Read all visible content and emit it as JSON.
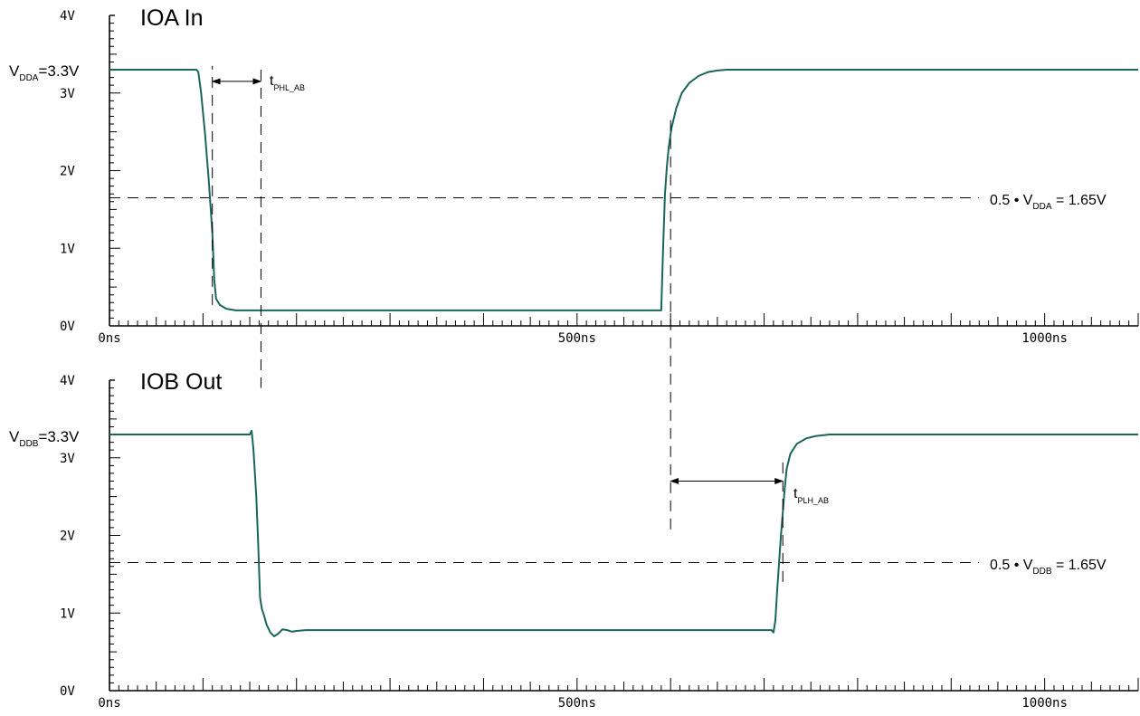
{
  "colors": {
    "trace": "#1b665b",
    "axis": "#000000",
    "guide": "#000000"
  },
  "chart_data": [
    {
      "type": "line",
      "title": "IOA  In",
      "xlabel": "",
      "ylabel": "",
      "xlim": [
        0,
        1100
      ],
      "ylim": [
        0,
        4
      ],
      "x_ticks": [
        {
          "value": 0,
          "label": "0ns"
        },
        {
          "value": 500,
          "label": "500ns"
        },
        {
          "value": 1000,
          "label": "1000ns"
        }
      ],
      "y_ticks": [
        {
          "value": 0,
          "label": "0V"
        },
        {
          "value": 1,
          "label": "1V"
        },
        {
          "value": 2,
          "label": "2V"
        },
        {
          "value": 3,
          "label": "3V"
        },
        {
          "value": 4,
          "label": "4V"
        }
      ],
      "supply_label": {
        "main": "V",
        "sub": "DDA",
        "rest": "=3.3V",
        "value": 3.3
      },
      "threshold": {
        "value": 1.65,
        "pre": "0.5 • V",
        "sub": "DDA",
        "post": " = 1.65V"
      },
      "series": [
        {
          "x": [
            0,
            93,
            95,
            98,
            102,
            106,
            110,
            112,
            114,
            118,
            125,
            135,
            150,
            200,
            300,
            400,
            500,
            590,
            592,
            594,
            596,
            598,
            601,
            606,
            612,
            620,
            630,
            640,
            650,
            660,
            1100
          ],
          "y": [
            3.3,
            3.3,
            3.27,
            3.0,
            2.5,
            1.9,
            1.2,
            0.6,
            0.35,
            0.27,
            0.22,
            0.2,
            0.2,
            0.2,
            0.2,
            0.2,
            0.2,
            0.2,
            1.0,
            1.7,
            2.05,
            2.3,
            2.55,
            2.8,
            3.0,
            3.13,
            3.22,
            3.27,
            3.29,
            3.3,
            3.3
          ]
        }
      ],
      "markers": [
        {
          "kind": "vline",
          "x": 110,
          "y_from": 0.27,
          "y_to": 3.35
        },
        {
          "kind": "arrow",
          "from": 110,
          "to": 162,
          "y": 3.15,
          "pre": "t",
          "sub": "PHL_AB"
        }
      ]
    },
    {
      "type": "line",
      "title": "IOB  Out",
      "xlabel": "",
      "ylabel": "",
      "xlim": [
        0,
        1100
      ],
      "ylim": [
        0,
        4
      ],
      "x_ticks": [
        {
          "value": 0,
          "label": "0ns"
        },
        {
          "value": 500,
          "label": "500ns"
        },
        {
          "value": 1000,
          "label": "1000ns"
        }
      ],
      "y_ticks": [
        {
          "value": 0,
          "label": "0V"
        },
        {
          "value": 1,
          "label": "1V"
        },
        {
          "value": 2,
          "label": "2V"
        },
        {
          "value": 3,
          "label": "3V"
        },
        {
          "value": 4,
          "label": "4V"
        }
      ],
      "supply_label": {
        "main": "V",
        "sub": "DDB",
        "rest": "=3.3V",
        "value": 3.3
      },
      "threshold": {
        "value": 1.65,
        "pre": "0.5 • V",
        "sub": "DDB",
        "post": " = 1.65V"
      },
      "series": [
        {
          "x": [
            0,
            150,
            152,
            154,
            157,
            159,
            161,
            163,
            165,
            168,
            172,
            176,
            180,
            185,
            190,
            195,
            200,
            210,
            300,
            400,
            500,
            600,
            700,
            708,
            710,
            712,
            714,
            716,
            718,
            720,
            722,
            724,
            728,
            735,
            745,
            755,
            770,
            790,
            1100
          ],
          "y": [
            3.3,
            3.3,
            3.35,
            3.1,
            2.5,
            1.9,
            1.2,
            1.05,
            0.98,
            0.85,
            0.75,
            0.7,
            0.73,
            0.79,
            0.78,
            0.76,
            0.77,
            0.78,
            0.78,
            0.78,
            0.78,
            0.78,
            0.78,
            0.78,
            0.75,
            0.9,
            1.3,
            1.65,
            2.0,
            2.3,
            2.6,
            2.85,
            3.05,
            3.18,
            3.25,
            3.28,
            3.3,
            3.3,
            3.3
          ]
        }
      ],
      "markers": [
        {
          "kind": "vline",
          "x": 720,
          "y_from": 1.4,
          "y_to": 3.0
        },
        {
          "kind": "arrow",
          "from": 600,
          "to": 720,
          "y": 2.7,
          "pre": "t",
          "sub": "PLH_AB"
        }
      ]
    }
  ]
}
